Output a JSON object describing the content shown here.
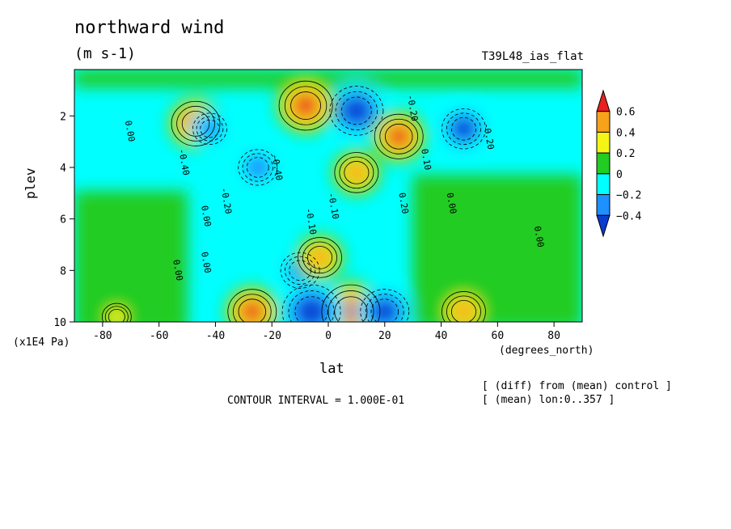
{
  "chart_data": {
    "type": "heatmap",
    "title": "northward wind",
    "units": "(m s-1)",
    "experiment": "T39L48_ias_flat",
    "xlabel": "lat",
    "xunit": "(degrees_north)",
    "ylabel": "plev",
    "yunit": "(x1E4 Pa)",
    "xlim": [
      -90,
      90
    ],
    "ylim": [
      10,
      0
    ],
    "xticks": [
      -80,
      -60,
      -40,
      -20,
      0,
      20,
      40,
      60,
      80
    ],
    "xtick_labels": [
      "-80",
      "-60",
      "-40",
      "-20",
      "0",
      "20",
      "40",
      "60",
      "80"
    ],
    "yticks": [
      2,
      4,
      6,
      8,
      10
    ],
    "ytick_labels": [
      "2",
      "4",
      "6",
      "8",
      "10"
    ],
    "contour_interval": "CONTOUR INTERVAL = 1.000E-01",
    "notes": [
      "[ (diff) from (mean) control ]",
      "[ (mean) lon:0..357 ]"
    ],
    "colorbar": {
      "labels": [
        "0.6",
        "0.4",
        "0.2",
        "0",
        "−0.2",
        "−0.4"
      ],
      "colors": [
        "#e8211e",
        "#f7a21b",
        "#f5f515",
        "#22cc22",
        "#00ffff",
        "#1e90ff",
        "#0a3cd2"
      ]
    },
    "contour_labels": [
      {
        "text": "0.00",
        "lat": -72,
        "plev": 2.2
      },
      {
        "text": "-0.40",
        "lat": -53,
        "plev": 3.3
      },
      {
        "text": "0.00",
        "lat": -45,
        "plev": 5.5
      },
      {
        "text": "-0.20",
        "lat": -38,
        "plev": 4.8
      },
      {
        "text": "-0.40",
        "lat": -20,
        "plev": 3.5
      },
      {
        "text": "0.00",
        "lat": -45,
        "plev": 7.3
      },
      {
        "text": "-0.10",
        "lat": -8,
        "plev": 5.6
      },
      {
        "text": "-0.10",
        "lat": 0,
        "plev": 5.0
      },
      {
        "text": "-0.20",
        "lat": 28,
        "plev": 1.2
      },
      {
        "text": "0.20",
        "lat": 25,
        "plev": 5.0
      },
      {
        "text": "0.10",
        "lat": 33,
        "plev": 3.3
      },
      {
        "text": "0.00",
        "lat": 42,
        "plev": 5.0
      },
      {
        "text": "-0.20",
        "lat": 55,
        "plev": 2.3
      },
      {
        "text": "0.00",
        "lat": 73,
        "plev": 6.3
      },
      {
        "text": "0.00",
        "lat": -55,
        "plev": 7.6
      }
    ],
    "field_features": [
      {
        "sign": "positive",
        "lat": -47,
        "plev": 2.3,
        "peak": 0.6
      },
      {
        "sign": "negative",
        "lat": -25,
        "plev": 4.0,
        "peak": -0.4
      },
      {
        "sign": "negative",
        "lat": -42,
        "plev": 2.5,
        "peak": -0.3
      },
      {
        "sign": "negative",
        "lat": 10,
        "plev": 1.8,
        "peak": -0.7
      },
      {
        "sign": "positive",
        "lat": -8,
        "plev": 1.6,
        "peak": 0.7
      },
      {
        "sign": "positive",
        "lat": 25,
        "plev": 2.8,
        "peak": 0.6
      },
      {
        "sign": "negative",
        "lat": 48,
        "plev": 2.5,
        "peak": -0.5
      },
      {
        "sign": "positive",
        "lat": 10,
        "plev": 4.2,
        "peak": 0.5
      },
      {
        "sign": "negative",
        "lat": -10,
        "plev": 8.0,
        "peak": -0.4
      },
      {
        "sign": "positive",
        "lat": -3,
        "plev": 7.5,
        "peak": 0.5
      },
      {
        "sign": "positive",
        "lat": 8,
        "plev": 9.6,
        "peak": 0.8
      },
      {
        "sign": "negative",
        "lat": -6,
        "plev": 9.6,
        "peak": -0.8
      },
      {
        "sign": "positive",
        "lat": -27,
        "plev": 9.6,
        "peak": 0.6
      },
      {
        "sign": "negative",
        "lat": 20,
        "plev": 9.6,
        "peak": -0.6
      },
      {
        "sign": "positive",
        "lat": 48,
        "plev": 9.6,
        "peak": 0.5
      },
      {
        "sign": "positive",
        "lat": -75,
        "plev": 9.8,
        "peak": 0.2
      }
    ]
  }
}
